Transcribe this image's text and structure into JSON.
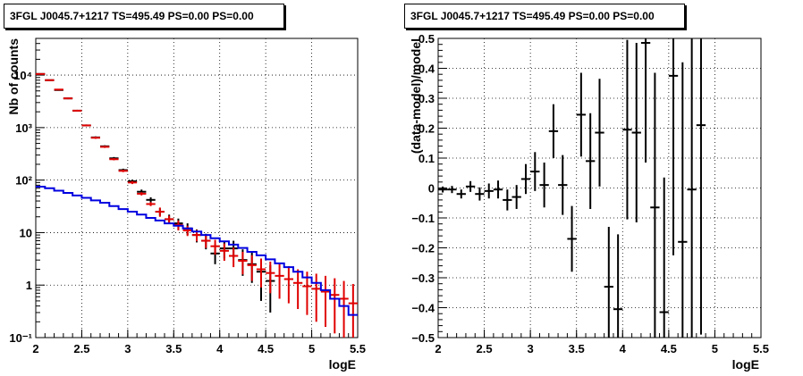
{
  "chart_data": [
    {
      "type": "line",
      "title": "3FGL J0045.7+1217 TS=495.49 PS=0.00 PS=0.00",
      "xlabel": "logE",
      "ylabel": "Nb of counts",
      "xlim": [
        2,
        5.5
      ],
      "ylim": [
        0.1,
        50000
      ],
      "yscale": "log",
      "grid": true,
      "x_ticks": [
        "2",
        "2.5",
        "3",
        "3.5",
        "4",
        "4.5",
        "5",
        "5.5"
      ],
      "y_ticks": [
        "10⁻¹",
        "1",
        "10",
        "10²",
        "10³",
        "10⁴"
      ],
      "y_tick_values": [
        0.1,
        1,
        10,
        100,
        1000,
        10000
      ],
      "series": [
        {
          "name": "",
          "kind": "data",
          "color": "#000000",
          "bin_width": 0.1,
          "x": [
            2.05,
            2.15,
            2.25,
            2.35,
            2.45,
            2.55,
            2.65,
            2.75,
            2.85,
            2.95,
            3.05,
            3.15,
            3.25,
            3.35,
            3.45,
            3.55,
            3.65,
            3.75,
            3.85,
            3.95,
            4.05,
            4.15,
            4.25,
            4.35,
            4.45,
            4.55
          ],
          "y": [
            10500,
            8000,
            5200,
            3600,
            2100,
            1100,
            650,
            440,
            260,
            155,
            95,
            60,
            42,
            25,
            18,
            15,
            12,
            9,
            7,
            4,
            5,
            5,
            3,
            2.5,
            1.8,
            1.2
          ],
          "y_low": [
            10300,
            7800,
            5050,
            3480,
            2020,
            1055,
            620,
            420,
            245,
            145,
            88,
            54,
            37,
            21,
            14.5,
            11.7,
            9,
            6.5,
            4.8,
            2.5,
            3.2,
            3.3,
            1.5,
            1.1,
            0.5,
            0.3
          ],
          "y_high": [
            10700,
            8200,
            5350,
            3720,
            2180,
            1145,
            680,
            460,
            275,
            165,
            102,
            66,
            47,
            29,
            22,
            18.5,
            15,
            11.5,
            9.5,
            5.8,
            7,
            7,
            4.8,
            4.2,
            3.2,
            2.4
          ]
        },
        {
          "name": "",
          "kind": "model",
          "color": "#e00000",
          "bin_width": 0.1,
          "x": [
            2.05,
            2.15,
            2.25,
            2.35,
            2.45,
            2.55,
            2.65,
            2.75,
            2.85,
            2.95,
            3.05,
            3.15,
            3.25,
            3.35,
            3.45,
            3.55,
            3.65,
            3.75,
            3.85,
            3.95,
            4.05,
            4.15,
            4.25,
            4.35,
            4.45,
            4.55,
            4.65,
            4.75,
            4.85,
            4.95,
            5.05,
            5.15,
            5.25,
            5.35,
            5.45
          ],
          "y": [
            10500,
            8000,
            5300,
            3600,
            2100,
            1100,
            640,
            430,
            250,
            150,
            90,
            55,
            35,
            25,
            18,
            14,
            11,
            9,
            7,
            5.5,
            4.5,
            3.6,
            2.9,
            2.4,
            2,
            1.7,
            1.5,
            1.3,
            1.1,
            0.95,
            0.85,
            0.75,
            0.65,
            0.55,
            0.45
          ],
          "y_low": [
            10300,
            7800,
            5150,
            3480,
            2020,
            1060,
            610,
            410,
            238,
            142,
            84,
            51,
            32,
            20,
            15,
            11,
            8.6,
            6.8,
            5.1,
            3.8,
            2.9,
            2.2,
            1.6,
            1.2,
            0.9,
            0.7,
            0.55,
            0.45,
            0.35,
            0.27,
            0.2,
            0.16,
            0.12,
            0.1,
            0.1
          ],
          "y_high": [
            10700,
            8200,
            5450,
            3720,
            2180,
            1140,
            670,
            450,
            262,
            158,
            96,
            59,
            38,
            30,
            21,
            17,
            13.5,
            11.2,
            9,
            7.3,
            6.2,
            5.2,
            4.3,
            3.7,
            3.2,
            2.8,
            2.6,
            2.3,
            2,
            1.8,
            1.65,
            1.5,
            1.35,
            1.2,
            1.05
          ]
        },
        {
          "name": "",
          "kind": "background",
          "color": "#0000e0",
          "step": true,
          "bin_edges": [
            2.0,
            2.1,
            2.2,
            2.3,
            2.4,
            2.5,
            2.6,
            2.7,
            2.8,
            2.9,
            3.0,
            3.1,
            3.2,
            3.3,
            3.4,
            3.5,
            3.6,
            3.7,
            3.8,
            3.9,
            4.0,
            4.1,
            4.2,
            4.3,
            4.4,
            4.5,
            4.6,
            4.7,
            4.8,
            4.9,
            5.0,
            5.1,
            5.2,
            5.3,
            5.4,
            5.5
          ],
          "y": [
            75,
            70,
            63,
            57,
            51,
            46,
            41,
            37,
            32,
            28,
            25,
            22,
            19,
            17,
            15,
            13.5,
            12,
            10.5,
            9,
            7.8,
            6.8,
            5.9,
            5.1,
            4.3,
            3.7,
            3.1,
            2.6,
            2.2,
            1.8,
            1.4,
            1.1,
            0.8,
            0.55,
            0.4,
            0.27
          ]
        }
      ]
    },
    {
      "type": "scatter",
      "title": "3FGL J0045.7+1217 TS=495.49 PS=0.00 PS=0.00",
      "xlabel": "logE",
      "ylabel": "(data-model)/model",
      "xlim": [
        2,
        5.5
      ],
      "ylim": [
        -0.5,
        0.5
      ],
      "grid": true,
      "x_ticks": [
        "2",
        "2.5",
        "3",
        "3.5",
        "4",
        "4.5",
        "5",
        "5.5"
      ],
      "y_ticks": [
        "−0.5",
        "−0.4",
        "−0.3",
        "−0.2",
        "−0.1",
        "0",
        "0.1",
        "0.2",
        "0.3",
        "0.4",
        "0.5"
      ],
      "y_tick_values": [
        -0.5,
        -0.4,
        -0.3,
        -0.2,
        -0.1,
        0,
        0.1,
        0.2,
        0.3,
        0.4,
        0.5
      ],
      "series": [
        {
          "name": "",
          "color": "#000000",
          "bin_width": 0.1,
          "x": [
            2.05,
            2.15,
            2.25,
            2.35,
            2.45,
            2.55,
            2.65,
            2.75,
            2.85,
            2.95,
            3.05,
            3.15,
            3.25,
            3.35,
            3.45,
            3.55,
            3.65,
            3.75,
            3.85,
            3.95,
            4.05,
            4.15,
            4.25,
            4.35,
            4.45,
            4.55,
            4.65,
            4.75,
            4.85
          ],
          "y": [
            -0.005,
            -0.005,
            -0.02,
            0.005,
            -0.02,
            -0.01,
            -0.005,
            -0.04,
            -0.03,
            0.03,
            0.055,
            0.01,
            0.19,
            0.01,
            -0.17,
            0.245,
            0.09,
            0.185,
            -0.33,
            -0.405,
            0.195,
            0.185,
            0.485,
            -0.065,
            -0.415,
            0.375,
            -0.18,
            -0.005,
            0.21
          ],
          "err": [
            0.01,
            0.012,
            0.015,
            0.018,
            0.022,
            0.025,
            0.03,
            0.035,
            0.04,
            0.05,
            0.065,
            0.075,
            0.09,
            0.1,
            0.11,
            0.14,
            0.16,
            0.18,
            0.2,
            0.25,
            0.3,
            0.3,
            0.4,
            0.45,
            0.45,
            0.6,
            0.6,
            0.6,
            0.7
          ]
        }
      ]
    }
  ]
}
